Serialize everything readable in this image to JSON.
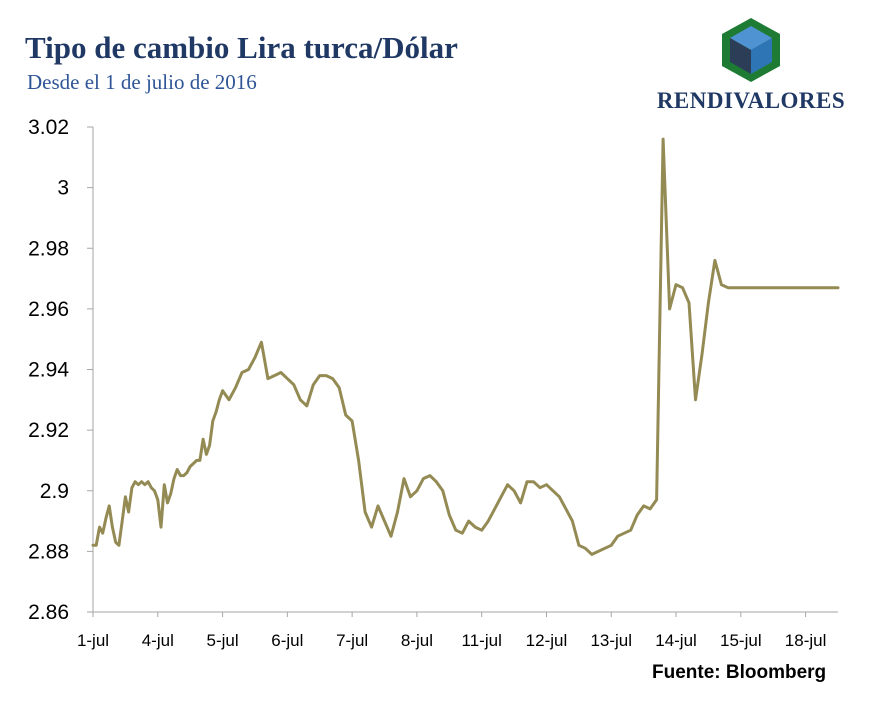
{
  "header": {
    "title": "Tipo de cambio Lira turca/Dólar",
    "subtitle": "Desde el 1 de julio de 2016"
  },
  "logo": {
    "text": "RENDIVALORES",
    "colors": {
      "green": "#1e7b34",
      "blue": "#2e75b6",
      "dark": "#1f3864"
    }
  },
  "footer": {
    "source": "Fuente: Bloomberg"
  },
  "chart_data": {
    "type": "line",
    "title": "Tipo de cambio Lira turca/Dólar",
    "subtitle": "Desde el 1 de julio de 2016",
    "xlabel": "",
    "ylabel": "",
    "ylim": [
      2.86,
      3.02
    ],
    "yticks": [
      2.86,
      2.88,
      2.9,
      2.92,
      2.94,
      2.96,
      2.98,
      3,
      3.02
    ],
    "ytick_labels": [
      "2.86",
      "2.88",
      "2.9",
      "2.92",
      "2.94",
      "2.96",
      "2.98",
      "3",
      "3.02"
    ],
    "categories": [
      "1-jul",
      "4-jul",
      "5-jul",
      "6-jul",
      "7-jul",
      "8-jul",
      "11-jul",
      "12-jul",
      "13-jul",
      "14-jul",
      "15-jul",
      "18-jul"
    ],
    "grid": false,
    "line_color": "#948a54",
    "series": [
      {
        "x": [
          0,
          0.05,
          0.1,
          0.15,
          0.2,
          0.25,
          0.3,
          0.35,
          0.4,
          0.45,
          0.5,
          0.55,
          0.6,
          0.65,
          0.7,
          0.75,
          0.8,
          0.85,
          0.9,
          0.95,
          1.0,
          1.05,
          1.1,
          1.15,
          1.2,
          1.25,
          1.3,
          1.35,
          1.4,
          1.45,
          1.5,
          1.55,
          1.6,
          1.65,
          1.7,
          1.75,
          1.8,
          1.85,
          1.9,
          1.95,
          2.0,
          2.1,
          2.2,
          2.3,
          2.4,
          2.5,
          2.6,
          2.7,
          2.8,
          2.9,
          3.0,
          3.1,
          3.2,
          3.3,
          3.4,
          3.5,
          3.6,
          3.7,
          3.8,
          3.9,
          4.0,
          4.1,
          4.2,
          4.3,
          4.4,
          4.5,
          4.6,
          4.7,
          4.8,
          4.9,
          5.0,
          5.1,
          5.2,
          5.3,
          5.4,
          5.5,
          5.6,
          5.7,
          5.8,
          5.9,
          6.0,
          6.1,
          6.2,
          6.3,
          6.4,
          6.5,
          6.6,
          6.7,
          6.8,
          6.9,
          7.0,
          7.1,
          7.2,
          7.3,
          7.4,
          7.5,
          7.6,
          7.7,
          7.8,
          7.9,
          8.0,
          8.1,
          8.2,
          8.3,
          8.4,
          8.5,
          8.6,
          8.7,
          8.8,
          8.9,
          9.0,
          9.1,
          9.2,
          9.3,
          9.4,
          9.5,
          9.6,
          9.7,
          9.8,
          9.9,
          10.0,
          10.1,
          10.2,
          10.3,
          10.4,
          10.45,
          10.5,
          10.55,
          10.6,
          10.65,
          10.7,
          10.75,
          10.8,
          10.85,
          10.9,
          10.95,
          11.0,
          11.05,
          11.1,
          11.15,
          11.2,
          11.25,
          11.3,
          11.35,
          11.4,
          11.45,
          11.5
        ],
        "values": [
          2.882,
          2.882,
          2.888,
          2.886,
          2.891,
          2.895,
          2.888,
          2.883,
          2.882,
          2.89,
          2.898,
          2.893,
          2.901,
          2.903,
          2.902,
          2.903,
          2.902,
          2.903,
          2.901,
          2.9,
          2.897,
          2.888,
          2.902,
          2.896,
          2.899,
          2.904,
          2.907,
          2.905,
          2.905,
          2.906,
          2.908,
          2.909,
          2.91,
          2.91,
          2.917,
          2.912,
          2.915,
          2.923,
          2.926,
          2.93,
          2.933,
          2.93,
          2.934,
          2.939,
          2.94,
          2.944,
          2.949,
          2.937,
          2.938,
          2.939,
          2.937,
          2.935,
          2.93,
          2.928,
          2.935,
          2.938,
          2.938,
          2.937,
          2.934,
          2.925,
          2.923,
          2.91,
          2.893,
          2.888,
          2.895,
          2.89,
          2.885,
          2.893,
          2.904,
          2.898,
          2.9,
          2.904,
          2.905,
          2.903,
          2.9,
          2.892,
          2.887,
          2.886,
          2.89,
          2.888,
          2.887,
          2.89,
          2.894,
          2.898,
          2.902,
          2.9,
          2.896,
          2.903,
          2.903,
          2.901,
          2.902,
          2.9,
          2.898,
          2.894,
          2.89,
          2.882,
          2.881,
          2.879,
          2.88,
          2.881,
          2.882,
          2.885,
          2.886,
          2.887,
          2.892,
          2.895,
          2.894,
          2.897,
          3.016,
          2.96,
          2.968,
          2.967,
          2.962,
          2.93,
          2.945,
          2.962,
          2.976,
          2.968,
          2.967,
          2.967,
          2.967,
          2.967,
          2.967,
          2.967,
          2.967,
          2.967,
          2.967,
          2.967,
          2.967,
          2.967,
          2.967,
          2.967,
          2.967,
          2.967,
          2.967,
          2.967,
          2.967,
          2.967,
          2.967,
          2.967,
          2.967,
          2.967,
          2.967,
          2.967,
          2.967,
          2.967,
          2.967
        ]
      }
    ]
  }
}
